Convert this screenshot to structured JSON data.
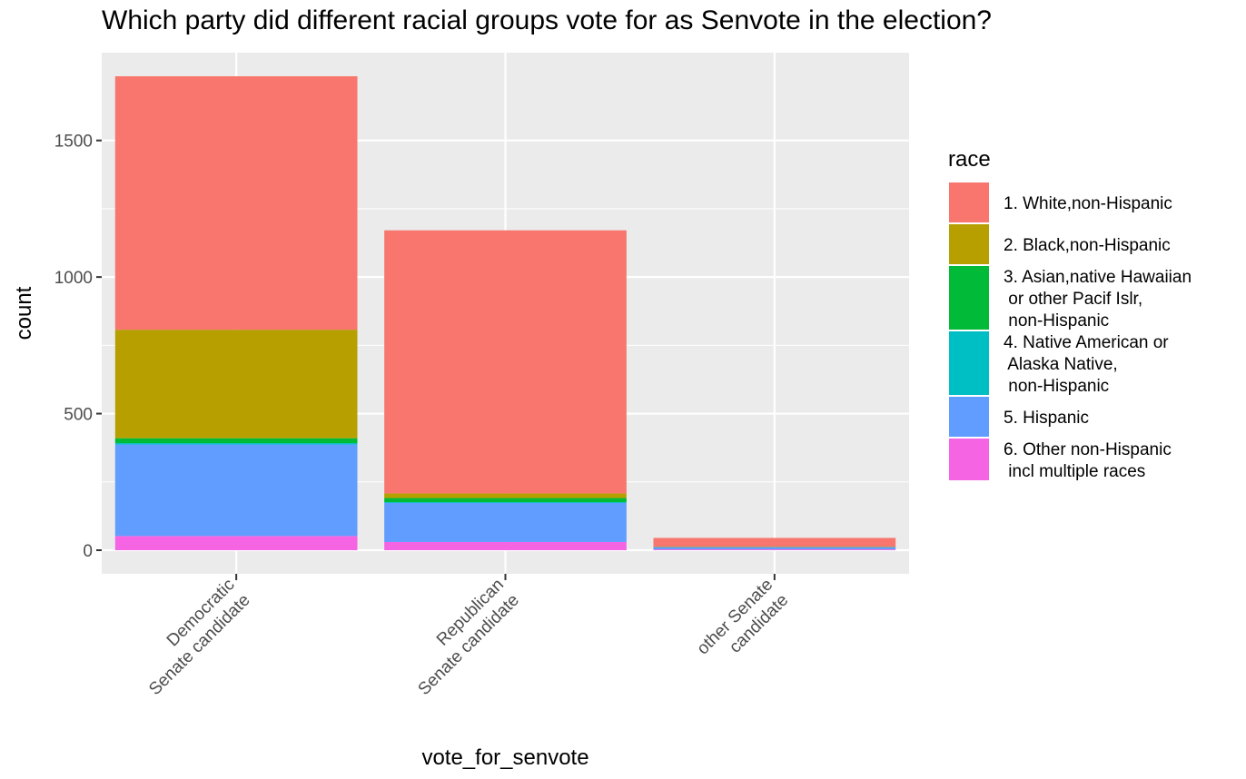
{
  "chart_data": {
    "type": "bar",
    "stacked": true,
    "title": "Which party did different racial groups vote for as Senvote in the election?",
    "xlabel": "vote_for_senvote",
    "ylabel": "count",
    "ylim": [
      0,
      1735
    ],
    "yticks": [
      0,
      500,
      1000,
      1500
    ],
    "grid": true,
    "legend_position": "right",
    "legend_title": "race",
    "categories": [
      [
        "Democratic",
        "Senate candidate"
      ],
      [
        "Republican",
        "Senate candidate"
      ],
      [
        "other Senate",
        "candidate"
      ]
    ],
    "series": [
      {
        "name": "6. Other non-Hispanic incl multiple races",
        "label_lines": [
          "6. Other non-Hispanic",
          " incl multiple races"
        ],
        "color": "#F564E3",
        "values": [
          52,
          30,
          3
        ]
      },
      {
        "name": "5. Hispanic",
        "label_lines": [
          "5. Hispanic"
        ],
        "color": "#619CFF",
        "values": [
          335,
          143,
          7
        ]
      },
      {
        "name": "4. Native American or Alaska Native, non-Hispanic",
        "label_lines": [
          "4. Native American or",
          " Alaska Native,",
          " non-Hispanic"
        ],
        "color": "#00BFC4",
        "values": [
          5,
          3,
          1
        ]
      },
      {
        "name": "3. Asian,native Hawaiian or other Pacif Islr, non-Hispanic",
        "label_lines": [
          "3. Asian,native Hawaiian",
          " or other Pacif Islr,",
          " non-Hispanic"
        ],
        "color": "#00BA38",
        "values": [
          18,
          15,
          1
        ]
      },
      {
        "name": "2. Black,non-Hispanic",
        "label_lines": [
          "2. Black,non-Hispanic"
        ],
        "color": "#B79F00",
        "values": [
          397,
          17,
          0
        ]
      },
      {
        "name": "1. White,non-Hispanic",
        "label_lines": [
          "1. White,non-Hispanic"
        ],
        "color": "#F8766D",
        "values": [
          928,
          963,
          33
        ]
      }
    ]
  }
}
